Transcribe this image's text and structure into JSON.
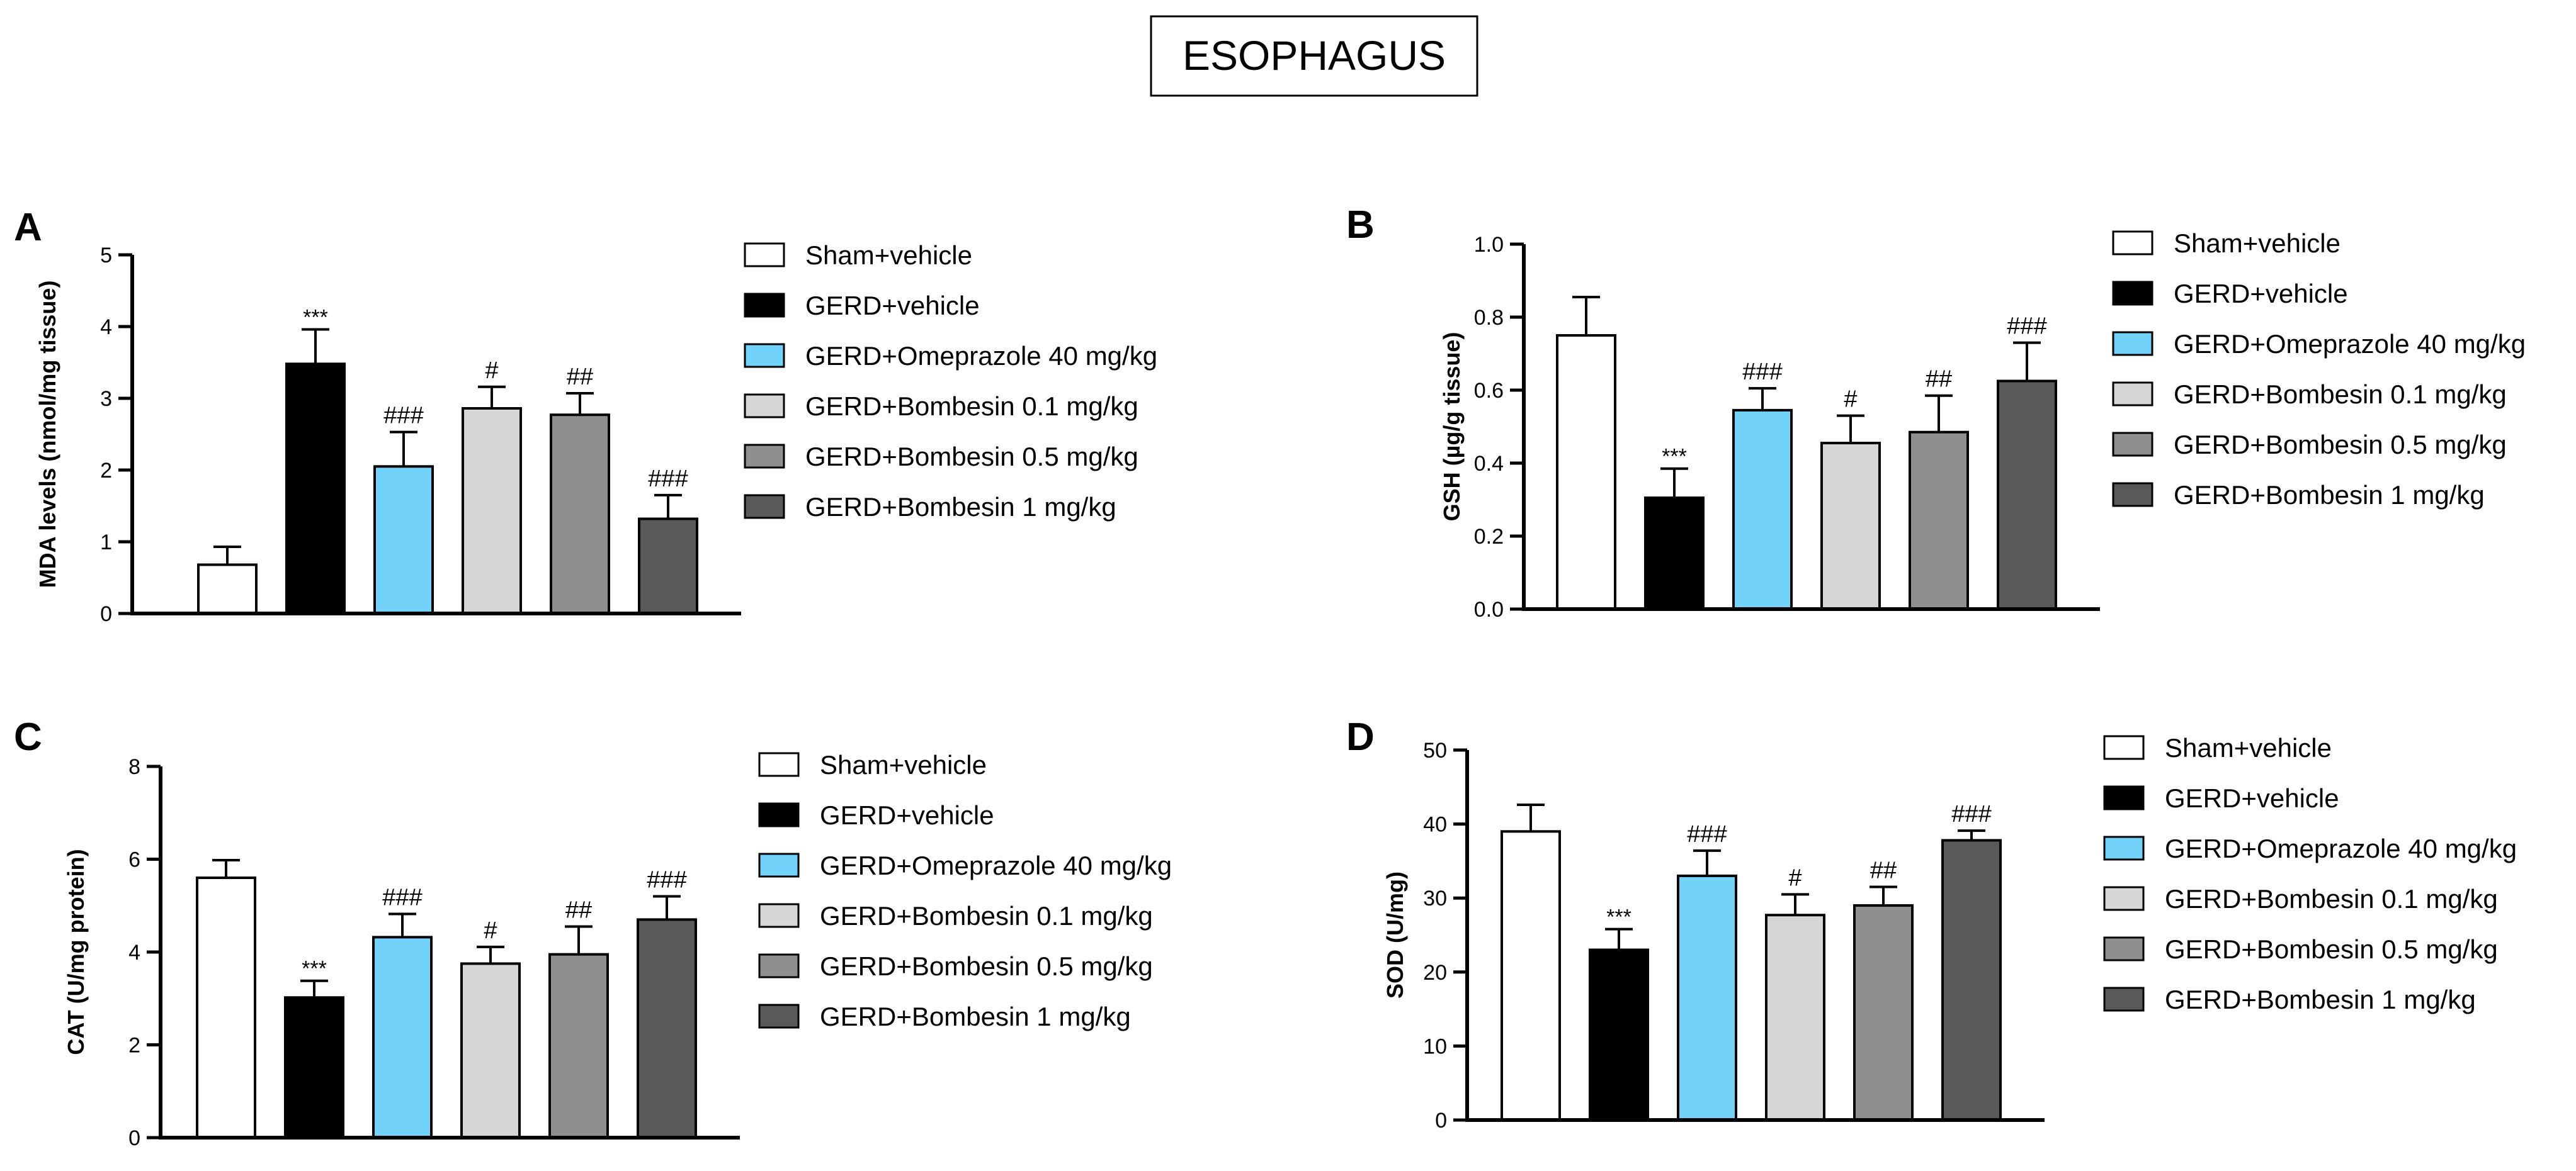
{
  "figure_title": "ESOPHAGUS",
  "groups": [
    {
      "name": "Sham+vehicle",
      "color": "#ffffff"
    },
    {
      "name": "GERD+vehicle",
      "color": "#000000"
    },
    {
      "name": "GERD+Omeprazole 40 mg/kg",
      "color": "#73d2fa"
    },
    {
      "name": "GERD+Bombesin 0.1 mg/kg",
      "color": "#d6d6d6"
    },
    {
      "name": "GERD+Bombesin 0.5 mg/kg",
      "color": "#8f8f8f"
    },
    {
      "name": "GERD+Bombesin 1 mg/kg",
      "color": "#595959"
    }
  ],
  "chart_data": [
    {
      "panel": "A",
      "type": "bar",
      "ylabel": "MDA levels (nmol/mg tissue)",
      "ylim": [
        0,
        5
      ],
      "yticks": [
        0,
        1,
        2,
        3,
        4,
        5
      ],
      "ytick_labels": [
        "0",
        "1",
        "2",
        "3",
        "4",
        "5"
      ],
      "categories": [
        "Sham+vehicle",
        "GERD+vehicle",
        "GERD+Omeprazole 40 mg/kg",
        "GERD+Bombesin 0.1 mg/kg",
        "GERD+Bombesin 0.5 mg/kg",
        "GERD+Bombesin 1 mg/kg"
      ],
      "values": [
        0.68,
        3.48,
        2.05,
        2.86,
        2.77,
        1.32
      ],
      "errors": [
        0.25,
        0.48,
        0.48,
        0.3,
        0.3,
        0.33
      ],
      "significance": [
        "",
        "***",
        "###",
        "#",
        "##",
        "###"
      ]
    },
    {
      "panel": "B",
      "type": "bar",
      "ylabel": "GSH (µg/g tissue)",
      "ylim": [
        0,
        1
      ],
      "yticks": [
        0,
        0.2,
        0.4,
        0.6,
        0.8,
        1.0
      ],
      "ytick_labels": [
        "0.0",
        "0.2",
        "0.4",
        "0.6",
        "0.8",
        "1.0"
      ],
      "categories": [
        "Sham+vehicle",
        "GERD+vehicle",
        "GERD+Omeprazole 40 mg/kg",
        "GERD+Bombesin 0.1 mg/kg",
        "GERD+Bombesin 0.5 mg/kg",
        "GERD+Bombesin 1 mg/kg"
      ],
      "values": [
        0.75,
        0.305,
        0.545,
        0.455,
        0.485,
        0.625
      ],
      "errors": [
        0.105,
        0.08,
        0.06,
        0.075,
        0.1,
        0.105
      ],
      "significance": [
        "",
        "***",
        "###",
        "#",
        "##",
        "###"
      ]
    },
    {
      "panel": "C",
      "type": "bar",
      "ylabel": "CAT (U/mg protein)",
      "ylim": [
        0,
        8
      ],
      "yticks": [
        0,
        2,
        4,
        6,
        8
      ],
      "ytick_labels": [
        "0",
        "2",
        "4",
        "6",
        "8"
      ],
      "categories": [
        "Sham+vehicle",
        "GERD+vehicle",
        "GERD+Omeprazole 40 mg/kg",
        "GERD+Bombesin 0.1 mg/kg",
        "GERD+Bombesin 0.5 mg/kg",
        "GERD+Bombesin 1 mg/kg"
      ],
      "values": [
        5.6,
        3.02,
        4.32,
        3.75,
        3.95,
        4.7
      ],
      "errors": [
        0.38,
        0.36,
        0.5,
        0.36,
        0.6,
        0.5
      ],
      "significance": [
        "",
        "***",
        "###",
        "#",
        "##",
        "###"
      ]
    },
    {
      "panel": "D",
      "type": "bar",
      "ylabel": "SOD (U/mg)",
      "ylim": [
        0,
        50
      ],
      "yticks": [
        0,
        10,
        20,
        30,
        40,
        50
      ],
      "ytick_labels": [
        "0",
        "10",
        "20",
        "30",
        "40",
        "50"
      ],
      "categories": [
        "Sham+vehicle",
        "GERD+vehicle",
        "GERD+Omeprazole 40 mg/kg",
        "GERD+Bombesin 0.1 mg/kg",
        "GERD+Bombesin 0.5 mg/kg",
        "GERD+Bombesin 1 mg/kg"
      ],
      "values": [
        39,
        23,
        33,
        27.7,
        29,
        37.8
      ],
      "errors": [
        3.6,
        2.8,
        3.4,
        2.8,
        2.5,
        1.3
      ],
      "significance": [
        "",
        "***",
        "###",
        "#",
        "##",
        "###"
      ]
    }
  ]
}
